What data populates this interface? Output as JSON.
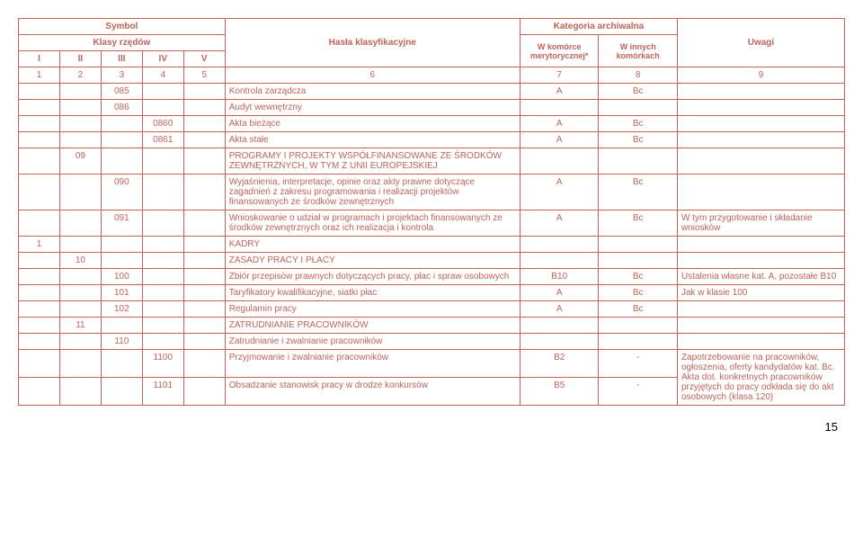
{
  "colors": {
    "line": "#c4625a",
    "bg": "#ffffff",
    "pagenum": "#000000"
  },
  "header": {
    "symbol": "Symbol",
    "klasy": "Klasy rzędów",
    "hasla": "Hasła klasyfikacyjne",
    "kategoria": "Kategoria archiwalna",
    "uwagi": "Uwagi",
    "roman": [
      "I",
      "II",
      "III",
      "IV",
      "V"
    ],
    "kom1": "W komórce merytorycznej*",
    "kom2": "W innych komórkach",
    "nums": [
      "1",
      "2",
      "3",
      "4",
      "5",
      "6",
      "7",
      "8",
      "9"
    ]
  },
  "rows": [
    {
      "c": [
        "",
        "",
        "085",
        "",
        ""
      ],
      "h": "Kontrola zarządcza",
      "k1": "A",
      "k2": "Bc",
      "u": ""
    },
    {
      "c": [
        "",
        "",
        "086",
        "",
        ""
      ],
      "h": "Audyt wewnętrzny",
      "k1": "",
      "k2": "",
      "u": ""
    },
    {
      "c": [
        "",
        "",
        "",
        "0860",
        ""
      ],
      "h": "Akta bieżące",
      "k1": "A",
      "k2": "Bc",
      "u": ""
    },
    {
      "c": [
        "",
        "",
        "",
        "0861",
        ""
      ],
      "h": "Akta stałe",
      "k1": "A",
      "k2": "Bc",
      "u": ""
    },
    {
      "c": [
        "",
        "09",
        "",
        "",
        ""
      ],
      "h": "PROGRAMY I PROJEKTY WSPÓŁFINANSOWANE ZE ŚRODKÓW ZEWNĘTRZNYCH, W TYM Z UNII EUROPEJSKIEJ",
      "k1": "",
      "k2": "",
      "u": ""
    },
    {
      "c": [
        "",
        "",
        "090",
        "",
        ""
      ],
      "h": "Wyjaśnienia, interpretacje, opinie oraz akty prawne dotyczące zagadnień z zakresu programowania i realizacji projektów finansowanych ze środków zewnętrznych",
      "k1": "A",
      "k2": "Bc",
      "u": ""
    },
    {
      "c": [
        "",
        "",
        "091",
        "",
        ""
      ],
      "h": "Wnioskowanie o udział w programach i projektach finansowanych ze środków zewnętrznych oraz ich realizacja i kontrola",
      "k1": "A",
      "k2": "Bc",
      "u": "W tym przygotowanie i składanie wniosków"
    },
    {
      "c": [
        "1",
        "",
        "",
        "",
        ""
      ],
      "h": "KADRY",
      "k1": "",
      "k2": "",
      "u": ""
    },
    {
      "c": [
        "",
        "10",
        "",
        "",
        ""
      ],
      "h": "ZASADY PRACY I PŁACY",
      "k1": "",
      "k2": "",
      "u": ""
    },
    {
      "c": [
        "",
        "",
        "100",
        "",
        ""
      ],
      "h": "Zbiór przepisów prawnych dotyczących pracy, płac i spraw osobowych",
      "k1": "B10",
      "k2": "Bc",
      "u": "Ustalenia własne kat. A, pozostałe B10"
    },
    {
      "c": [
        "",
        "",
        "101",
        "",
        ""
      ],
      "h": "Taryfikatory kwalifikacyjne, siatki płac",
      "k1": "A",
      "k2": "Bc",
      "u": "Jak w klasie 100"
    },
    {
      "c": [
        "",
        "",
        "102",
        "",
        ""
      ],
      "h": "Regulamin pracy",
      "k1": "A",
      "k2": "Bc",
      "u": ""
    },
    {
      "c": [
        "",
        "11",
        "",
        "",
        ""
      ],
      "h": "ZATRUDNIANIE PRACOWNIKÓW",
      "k1": "",
      "k2": "",
      "u": ""
    },
    {
      "c": [
        "",
        "",
        "110",
        "",
        ""
      ],
      "h": "Zatrudnianie i zwalnianie pracowników",
      "k1": "",
      "k2": "",
      "u": ""
    },
    {
      "c": [
        "",
        "",
        "",
        "1100",
        ""
      ],
      "h": "Przyjmowanie i zwalnianie pracowników",
      "k1": "B2",
      "k2": "-",
      "u": "Zapotrzebowanie na pracowników, ogłoszenia, oferty kandydatów kat. Bc. Akta dot. konkretnych pracowników przyjętych do pracy odkłada się do akt osobowych (klasa 120)",
      "merge_u": 2
    },
    {
      "c": [
        "",
        "",
        "",
        "1101",
        ""
      ],
      "h": "Obsadzanie stanowisk pracy w drodze konkursów",
      "k1": "B5",
      "k2": "-",
      "skip_u": true
    }
  ],
  "page": "15"
}
